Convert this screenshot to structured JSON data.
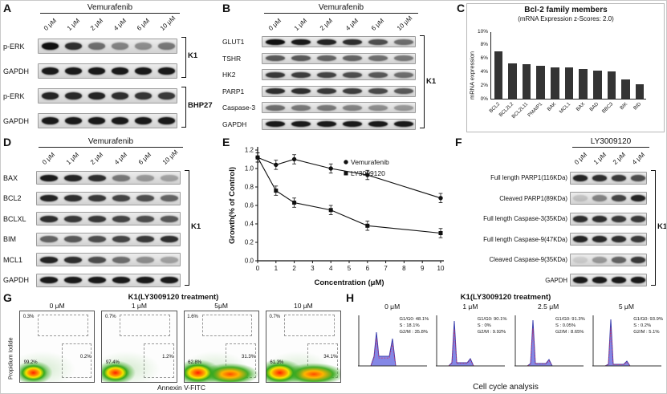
{
  "panelA": {
    "label": "A",
    "drug": "Vemurafenib",
    "doses": [
      "0 μM",
      "1 μM",
      "2 μM",
      "4 μM",
      "6 μM",
      "10 μM"
    ],
    "groups": [
      {
        "bracket": "K1",
        "rows": [
          {
            "protein": "p-ERK",
            "intensities": [
              1,
              0.85,
              0.55,
              0.45,
              0.4,
              0.5
            ]
          },
          {
            "protein": "GAPDH",
            "intensities": [
              0.95,
              0.95,
              0.95,
              0.95,
              0.95,
              0.95
            ]
          }
        ]
      },
      {
        "bracket": "BHP27",
        "rows": [
          {
            "protein": "p-ERK",
            "intensities": [
              0.9,
              0.88,
              0.9,
              0.85,
              0.82,
              0.8
            ]
          },
          {
            "protein": "GAPDH",
            "intensities": [
              0.95,
              0.95,
              0.95,
              0.95,
              0.95,
              0.95
            ]
          }
        ]
      }
    ]
  },
  "panelB": {
    "label": "B",
    "drug": "Vemurafenib",
    "doses": [
      "0 μM",
      "1 μM",
      "2 μM",
      "4 μM",
      "6 μM",
      "10 μM"
    ],
    "groups": [
      {
        "bracket": "K1",
        "rows": [
          {
            "protein": "GLUT1",
            "intensities": [
              1,
              0.95,
              0.9,
              0.85,
              0.7,
              0.55
            ]
          },
          {
            "protein": "TSHR",
            "intensities": [
              0.65,
              0.65,
              0.6,
              0.6,
              0.55,
              0.5
            ]
          },
          {
            "protein": "HK2",
            "intensities": [
              0.8,
              0.78,
              0.75,
              0.7,
              0.65,
              0.55
            ]
          },
          {
            "protein": "PARP1",
            "intensities": [
              0.85,
              0.85,
              0.8,
              0.78,
              0.72,
              0.65
            ]
          },
          {
            "protein": "Caspase-3",
            "intensities": [
              0.55,
              0.5,
              0.5,
              0.45,
              0.4,
              0.35
            ]
          },
          {
            "protein": "GAPDH",
            "intensities": [
              0.95,
              0.95,
              0.95,
              0.95,
              0.95,
              0.95
            ]
          }
        ]
      }
    ]
  },
  "panelC": {
    "label": "C",
    "chart_data": {
      "type": "bar",
      "title": "Bcl-2 family members",
      "subtitle": "(mRNA Expression z-Scores: 2.0)",
      "ylabel": "mRNA expression",
      "categories": [
        "BCL2",
        "BCL2L2",
        "BCL2L11",
        "PMAIP1",
        "BAK",
        "MCL1",
        "BAX",
        "BAD",
        "BBC3",
        "BIK",
        "BID"
      ],
      "values": [
        7.0,
        5.3,
        5.1,
        4.9,
        4.7,
        4.6,
        4.4,
        4.2,
        4.1,
        2.9,
        2.1
      ],
      "ytick_labels": [
        "0%",
        "2%",
        "4%",
        "6%",
        "8%",
        "10%"
      ],
      "ylim": [
        0,
        10
      ],
      "grid": false
    }
  },
  "panelD": {
    "label": "D",
    "drug": "Vemurafenib",
    "doses": [
      "0 μM",
      "1 μM",
      "2 μM",
      "4 μM",
      "6 μM",
      "10 μM"
    ],
    "groups": [
      {
        "bracket": "K1",
        "rows": [
          {
            "protein": "BAX",
            "intensities": [
              0.95,
              0.9,
              0.85,
              0.5,
              0.35,
              0.3
            ]
          },
          {
            "protein": "BCL2",
            "intensities": [
              0.9,
              0.85,
              0.8,
              0.75,
              0.7,
              0.6
            ]
          },
          {
            "protein": "BCLXL",
            "intensities": [
              0.85,
              0.8,
              0.8,
              0.75,
              0.7,
              0.65
            ]
          },
          {
            "protein": "BIM",
            "intensities": [
              0.6,
              0.65,
              0.7,
              0.75,
              0.8,
              0.85
            ]
          },
          {
            "protein": "MCL1",
            "intensities": [
              0.9,
              0.85,
              0.7,
              0.55,
              0.4,
              0.3
            ]
          },
          {
            "protein": "GAPDH",
            "intensities": [
              0.95,
              0.95,
              0.95,
              0.95,
              0.95,
              0.95
            ]
          }
        ]
      }
    ]
  },
  "panelE": {
    "label": "E",
    "chart_data": {
      "type": "line",
      "xlabel": "Concentration (μM)",
      "ylabel": "Growth(% of Control)",
      "xlim": [
        0,
        10
      ],
      "ylim": [
        0,
        1.2
      ],
      "xticks": [
        0,
        1,
        2,
        3,
        4,
        5,
        6,
        7,
        8,
        9,
        10
      ],
      "yticks": [
        0,
        0.2,
        0.4,
        0.6,
        0.8,
        1.0,
        1.2
      ],
      "legend_position": "upper right",
      "series": [
        {
          "name": "Vemurafenib",
          "marker": "circle",
          "x": [
            0,
            1,
            2,
            4,
            6,
            10
          ],
          "y": [
            1.12,
            1.04,
            1.1,
            1.0,
            0.93,
            0.68
          ],
          "err": 0.05
        },
        {
          "name": "LY3009120",
          "marker": "square",
          "x": [
            0,
            1,
            2,
            4,
            6,
            10
          ],
          "y": [
            1.12,
            0.76,
            0.63,
            0.55,
            0.38,
            0.3
          ],
          "err": 0.05
        }
      ]
    }
  },
  "panelF": {
    "label": "F",
    "drug": "LY3009120",
    "doses": [
      "0 μM",
      "1 μM",
      "2 μM",
      "4 μM"
    ],
    "groups": [
      {
        "bracket": "K1",
        "rows": [
          {
            "protein": "Full length PARP1(116KDa)",
            "intensities": [
              0.9,
              0.85,
              0.8,
              0.7
            ]
          },
          {
            "protein": "Cleaved PARP1(89KDa)",
            "intensities": [
              0.15,
              0.45,
              0.75,
              0.9
            ]
          },
          {
            "protein": "Full length Caspase-3(35KDa)",
            "intensities": [
              0.85,
              0.85,
              0.8,
              0.8
            ]
          },
          {
            "protein": "Full length Caspase-9(47KDa)",
            "intensities": [
              0.9,
              0.88,
              0.85,
              0.8
            ]
          },
          {
            "protein": "Cleaved Caspase-9(35KDa)",
            "intensities": [
              0.1,
              0.35,
              0.6,
              0.8
            ]
          },
          {
            "protein": "GAPDH",
            "intensities": [
              0.95,
              0.95,
              0.95,
              0.95
            ]
          }
        ]
      }
    ]
  },
  "panelG": {
    "label": "G",
    "title": "K1(LY3009120 treatment)",
    "xlabel": "Annexin V-FITC",
    "ylabel": "Propidium Iodide",
    "plots": [
      {
        "dose": "0 μM",
        "upper": "0.3%",
        "lower_left": "99.2%",
        "lower_right": "0.2%",
        "shift": 0
      },
      {
        "dose": "1 μM",
        "upper": "0.7%",
        "lower_left": "97.4%",
        "lower_right": "1.2%",
        "shift": 0.15
      },
      {
        "dose": "5μM",
        "upper": "1.6%",
        "lower_left": "62.8%",
        "lower_right": "31.3%",
        "shift": 0.6
      },
      {
        "dose": "10 μM",
        "upper": "0.7%",
        "lower_left": "61.3%",
        "lower_right": "34.1%",
        "shift": 0.7
      }
    ]
  },
  "panelH": {
    "label": "H",
    "title": "K1(LY3009120 treatment)",
    "caption": "Cell cycle analysis",
    "plots": [
      {
        "dose": "0 μM",
        "stats": [
          "G1/G0: 48.1%",
          "S : 18.1%",
          "G2/M : 35.8%"
        ],
        "shape": {
          "g1": 42,
          "s": 12,
          "g2": 34
        }
      },
      {
        "dose": "1 μM",
        "stats": [
          "G1/G0: 90.1%",
          "S : 0%",
          "G2/M : 9.92%"
        ],
        "shape": {
          "g1": 56,
          "s": 4,
          "g2": 9
        }
      },
      {
        "dose": "2.5 μM",
        "stats": [
          "G1/G0: 91.3%",
          "S : 0.05%",
          "G2/M : 8.65%"
        ],
        "shape": {
          "g1": 57,
          "s": 3,
          "g2": 8
        }
      },
      {
        "dose": "5 μM",
        "stats": [
          "G1/G0: 93.9%",
          "S : 0.2%",
          "G2/M : 5.1%"
        ],
        "shape": {
          "g1": 58,
          "s": 2,
          "g2": 6
        }
      }
    ]
  }
}
